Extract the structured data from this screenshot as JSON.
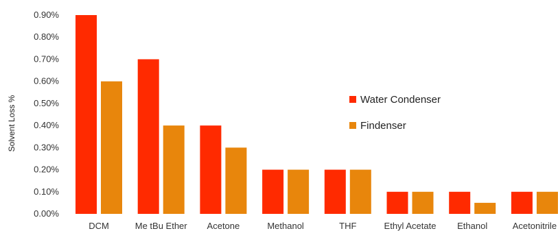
{
  "chart_data": {
    "type": "bar",
    "ylabel": "Solvent Loss %",
    "xlabel": "",
    "ylim": [
      0,
      0.9
    ],
    "y_ticks": [
      "0.00%",
      "0.10%",
      "0.20%",
      "0.30%",
      "0.40%",
      "0.50%",
      "0.60%",
      "0.70%",
      "0.80%",
      "0.90%"
    ],
    "categories": [
      "DCM",
      "Me tBu Ether",
      "Acetone",
      "Methanol",
      "THF",
      "Ethyl Acetate",
      "Ethanol",
      "Acetonitrile"
    ],
    "series": [
      {
        "name": "Water Condenser",
        "color": "#ff2a00",
        "values": [
          0.9,
          0.7,
          0.4,
          0.2,
          0.2,
          0.1,
          0.1,
          0.1
        ]
      },
      {
        "name": "Findenser",
        "color": "#e8860c",
        "values": [
          0.6,
          0.4,
          0.3,
          0.2,
          0.2,
          0.1,
          0.05,
          0.1
        ]
      }
    ],
    "grid": false,
    "legend_position": "right"
  }
}
